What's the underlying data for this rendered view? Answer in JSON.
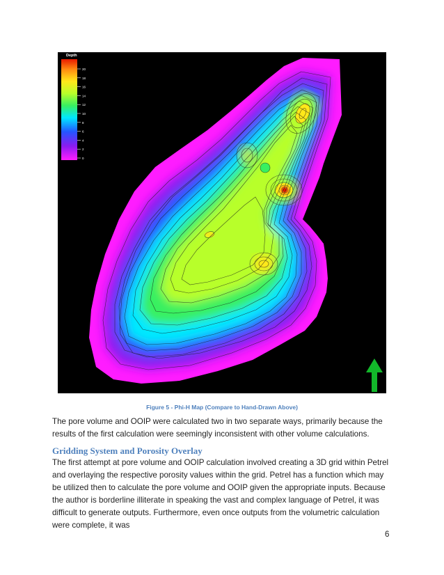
{
  "figure": {
    "legend_title": "Depth",
    "legend_ticks": [
      "20",
      "18",
      "16",
      "14",
      "12",
      "10",
      "8",
      "6",
      "4",
      "2",
      "0"
    ],
    "north_arrow_color": "#12b82a",
    "colors": {
      "magenta": "#ff1cff",
      "purple": "#8a1cf0",
      "blue": "#2455ff",
      "cyan": "#00e8ff",
      "green": "#38f060",
      "yellow_green": "#b8ff2a",
      "yellow": "#ffe81a",
      "orange": "#ff8a10",
      "red": "#e81a00"
    }
  },
  "caption": "Figure 5 - Phi-H Map (Compare to Hand-Drawn Above)",
  "paragraph_1": "The pore volume and OOIP were calculated two in two separate ways, primarily because the results of the first calculation were seemingly inconsistent with other volume calculations.",
  "section_heading": "Gridding System and Porosity Overlay",
  "paragraph_2": "The first attempt at pore volume and OOIP calculation involved creating a 3D grid within Petrel and overlaying the respective porosity values within the grid.  Petrel has a function which may be utilized then to calculate the pore volume and OOIP given the appropriate inputs.  Because the author is borderline illiterate in speaking the vast and complex language of Petrel, it was difficult to generate outputs.  Furthermore, even once outputs from the volumetric calculation were complete, it was",
  "page_number": "6"
}
